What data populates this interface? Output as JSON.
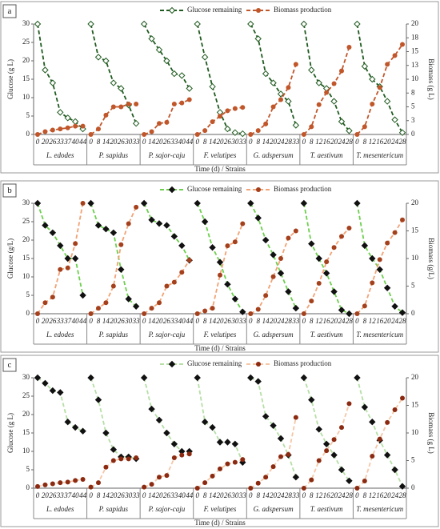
{
  "chart_data": [
    {
      "type": "line",
      "panel": "a",
      "y_label": "Glucose (g L)",
      "y2_label": "Biomass (g L)",
      "x_label": "Time (d) / Strains",
      "ylim": [
        0,
        30
      ],
      "yticks": [
        0,
        5,
        10,
        15,
        20,
        25,
        30
      ],
      "y2lim": [
        0,
        20
      ],
      "y2ticks": [
        0,
        {
          "value": 2.5,
          "label": "3"
        },
        5,
        {
          "value": 7.5,
          "label": "8"
        },
        10,
        {
          "value": 12.5,
          "label": "13"
        },
        15,
        {
          "value": 17.5,
          "label": "18"
        },
        20
      ],
      "groups": [
        {
          "name": "L. edodes",
          "categories": [
            0,
            20,
            26,
            33,
            37,
            40,
            44
          ]
        },
        {
          "name": "P. sapidus",
          "categories": [
            0,
            8,
            14,
            20,
            26,
            30,
            33
          ]
        },
        {
          "name": "P. sajor-caju",
          "categories": [
            0,
            14,
            20,
            26,
            33,
            40,
            44
          ]
        },
        {
          "name": "F. velutipes",
          "categories": [
            0,
            8,
            14,
            20,
            26,
            30,
            33
          ]
        },
        {
          "name": "G. adspersum",
          "categories": [
            0,
            8,
            14,
            20,
            24,
            28,
            33
          ]
        },
        {
          "name": "T. aestivum",
          "categories": [
            0,
            8,
            12,
            16,
            20,
            24,
            28
          ]
        },
        {
          "name": "T. mesentericum",
          "categories": [
            0,
            8,
            12,
            16,
            20,
            24,
            28
          ]
        }
      ],
      "series": [
        {
          "name": "Glucose remaining",
          "color": "#1f5a1f",
          "marker": "diamond",
          "marker_fill": "#ffffff",
          "values": [
            [
              30,
              17.5,
              14,
              6,
              4.5,
              3.5,
              1.5
            ],
            [
              30,
              21,
              20,
              14,
              12.5,
              8,
              3
            ],
            [
              30,
              26,
              23,
              20,
              16.5,
              16,
              12.5
            ],
            [
              30,
              21,
              13,
              6,
              1.5,
              0.5,
              0.2
            ],
            [
              30,
              26,
              16.5,
              14,
              11,
              9,
              2.5
            ],
            [
              30,
              17.5,
              14,
              12.5,
              9,
              3.5,
              1
            ],
            [
              30,
              18.5,
              15,
              13,
              9,
              4,
              0.5
            ]
          ]
        },
        {
          "name": "Biomass production",
          "color": "#c0562a",
          "marker": "circle",
          "marker_fill": "#c0562a",
          "axis": "y2",
          "values": [
            [
              0,
              0.5,
              0.8,
              1,
              1.2,
              1.5,
              1.5
            ],
            [
              0,
              1,
              3.5,
              5,
              5,
              5.5,
              5.5
            ],
            [
              0,
              0.5,
              2,
              2.2,
              5.5,
              5.7,
              6.3
            ],
            [
              0,
              0.7,
              2.3,
              3.3,
              4.3,
              4.7,
              4.9
            ],
            [
              0,
              0.7,
              1.9,
              5,
              6.3,
              8.5,
              12.7
            ],
            [
              0,
              1.4,
              5.4,
              7.6,
              9.2,
              11.5,
              15.8
            ],
            [
              0,
              1.4,
              5.5,
              8.5,
              12.7,
              14.3,
              16.3
            ]
          ]
        }
      ]
    },
    {
      "type": "line",
      "panel": "b",
      "y_label": "Glucose (g/L)",
      "y2_label": "Biomass (g/L)",
      "x_label": "Time (d) / Strains",
      "ylim": [
        0,
        30
      ],
      "yticks": [
        0,
        5,
        10,
        15,
        20,
        25,
        30
      ],
      "y2lim": [
        0,
        20
      ],
      "y2ticks": [
        0,
        5,
        10,
        15,
        20
      ],
      "groups": [
        {
          "name": "L. edodes",
          "categories": [
            0,
            20,
            26,
            33,
            37,
            40,
            44
          ]
        },
        {
          "name": "P. sapidus",
          "categories": [
            0,
            8,
            14,
            20,
            26,
            30,
            33
          ]
        },
        {
          "name": "P. sajor-caju",
          "categories": [
            0,
            14,
            20,
            26,
            33,
            40,
            44
          ]
        },
        {
          "name": "F. velutipes",
          "categories": [
            0,
            8,
            14,
            20,
            26,
            30,
            33
          ]
        },
        {
          "name": "G. adspersum",
          "categories": [
            0,
            8,
            14,
            20,
            24,
            28,
            33
          ]
        },
        {
          "name": "T. aestivum",
          "categories": [
            0,
            8,
            12,
            16,
            20,
            24,
            28
          ]
        },
        {
          "name": "T. mesentericum",
          "categories": [
            0,
            8,
            12,
            16,
            20,
            24,
            28
          ]
        }
      ],
      "series": [
        {
          "name": "Glucose remaining",
          "color": "#6ccf4c",
          "marker": "diamond",
          "marker_fill": "#111111",
          "values": [
            [
              30,
              24,
              22,
              18.5,
              15,
              15,
              5
            ],
            [
              30,
              24,
              23,
              22,
              12,
              4,
              2
            ],
            [
              30,
              25.5,
              24.5,
              24,
              21,
              18.5,
              14.5
            ],
            [
              30,
              25,
              18,
              14,
              8,
              4,
              0.5
            ],
            [
              30,
              26,
              20,
              16,
              11,
              6,
              1.5
            ],
            [
              30,
              19,
              15,
              11,
              6,
              1,
              0
            ],
            [
              30,
              18.5,
              15,
              12,
              7,
              2,
              0.3
            ]
          ]
        },
        {
          "name": "Biomass production",
          "color": "#f2a274",
          "marker": "circle",
          "marker_fill": "#a5401c",
          "axis": "y2",
          "values": [
            [
              0,
              2,
              3,
              8,
              8.3,
              12.7,
              20
            ],
            [
              0,
              1,
              2,
              5,
              12.5,
              16.3,
              19.3
            ],
            [
              0,
              1,
              2,
              5,
              5.7,
              7.5,
              9.7
            ],
            [
              0,
              0.5,
              1,
              7,
              12.3,
              13,
              16.3
            ],
            [
              0,
              0.8,
              3.3,
              6.7,
              10,
              13.7,
              15
            ],
            [
              0,
              2.3,
              5.5,
              9.4,
              12,
              14,
              15.5
            ],
            [
              0,
              1.4,
              5.6,
              9.8,
              12.8,
              14.7,
              17
            ]
          ]
        }
      ]
    },
    {
      "type": "line",
      "panel": "c",
      "y_label": "Glucose (g L)",
      "y2_label": "Biomass (g L)",
      "x_label": "Time (d) / Strains",
      "ylim": [
        0,
        30
      ],
      "yticks": [
        0,
        5,
        10,
        15,
        20,
        25,
        30
      ],
      "y2lim": [
        0,
        20
      ],
      "y2ticks": [
        0,
        5,
        10,
        15,
        20
      ],
      "groups": [
        {
          "name": "L. edodes",
          "categories": [
            0,
            20,
            26,
            33,
            37,
            40,
            44
          ]
        },
        {
          "name": "P. sapidus",
          "categories": [
            0,
            8,
            14,
            20,
            26,
            30,
            33
          ]
        },
        {
          "name": "P. sajor-caju",
          "categories": [
            0,
            14,
            20,
            26,
            33,
            40,
            44
          ]
        },
        {
          "name": "F. velutipes",
          "categories": [
            0,
            8,
            14,
            20,
            26,
            30,
            33
          ]
        },
        {
          "name": "G. adspersum",
          "categories": [
            0,
            8,
            14,
            20,
            24,
            28,
            33
          ]
        },
        {
          "name": "T. aestivum",
          "categories": [
            0,
            8,
            12,
            16,
            20,
            24,
            28
          ]
        },
        {
          "name": "T. mesentericum",
          "categories": [
            0,
            8,
            12,
            16,
            20,
            24,
            28
          ]
        }
      ],
      "series": [
        {
          "name": "Glucose remaining",
          "color": "#b5dfa5",
          "marker": "diamond",
          "marker_fill": "#111111",
          "values": [
            [
              30,
              28.5,
              26.5,
              26,
              18,
              16.5,
              15.5
            ],
            [
              30,
              24,
              15,
              10.5,
              8.5,
              8.5,
              8
            ],
            [
              30,
              21.5,
              18.5,
              15,
              12,
              10,
              10
            ],
            [
              30,
              18,
              16.5,
              12.5,
              12.5,
              12,
              7
            ],
            [
              30,
              29,
              19.5,
              17,
              13.5,
              9,
              3
            ],
            [
              30,
              24,
              16,
              12,
              9,
              5,
              2
            ],
            [
              30,
              22,
              18,
              13,
              9,
              5,
              0.5
            ]
          ]
        },
        {
          "name": "Biomass production",
          "color": "#f5c6a6",
          "marker": "circle",
          "marker_fill": "#8b2a10",
          "axis": "y2",
          "values": [
            [
              0.3,
              0.6,
              0.8,
              1,
              1.1,
              1.4,
              1.6
            ],
            [
              0.2,
              1,
              3.8,
              5,
              5.3,
              5.3,
              5.5
            ],
            [
              0.2,
              0.7,
              2,
              2.3,
              5.5,
              6,
              6.2
            ],
            [
              0,
              1,
              2.2,
              3.5,
              4.4,
              4.7,
              5.2
            ],
            [
              0,
              0.9,
              2,
              3.9,
              5.7,
              6.1,
              12.8
            ],
            [
              0,
              1.5,
              5,
              6.8,
              8.8,
              11,
              15.3
            ],
            [
              0,
              1.3,
              5.8,
              8.9,
              11.9,
              14.2,
              16.3
            ]
          ]
        }
      ]
    }
  ]
}
